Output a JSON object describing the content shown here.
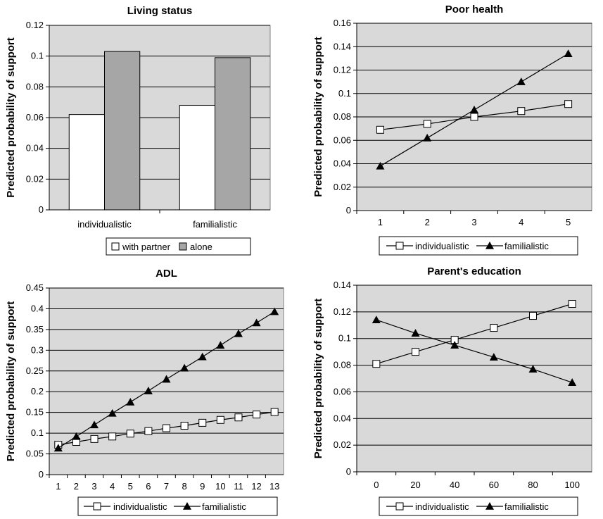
{
  "chart_data": [
    {
      "type": "bar",
      "title": "Living status",
      "xlabel": "",
      "ylabel": "Predicted probability of support",
      "ylim": [
        0,
        0.12
      ],
      "yticks": [
        "0",
        "0.02",
        "0.04",
        "0.06",
        "0.08",
        "0.1",
        "0.12"
      ],
      "categories": [
        "individualistic",
        "familialistic"
      ],
      "series": [
        {
          "name": "with partner",
          "values": [
            0.062,
            0.068
          ],
          "color": "#ffffff"
        },
        {
          "name": "alone",
          "values": [
            0.103,
            0.099
          ],
          "color": "#a6a6a6"
        }
      ],
      "grid": true,
      "legend": "bottom"
    },
    {
      "type": "line",
      "title": "Poor health",
      "xlabel": "",
      "ylabel": "Predicted probability of support",
      "ylim": [
        0,
        0.16
      ],
      "yticks": [
        "0",
        "0.02",
        "0.04",
        "0.06",
        "0.08",
        "0.1",
        "0.12",
        "0.14",
        "0.16"
      ],
      "x": [
        "1",
        "2",
        "3",
        "4",
        "5"
      ],
      "series": [
        {
          "name": "individualistic",
          "marker": "square",
          "values": [
            0.069,
            0.074,
            0.08,
            0.085,
            0.091
          ]
        },
        {
          "name": "familialistic",
          "marker": "triangle",
          "values": [
            0.038,
            0.062,
            0.086,
            0.11,
            0.134
          ]
        }
      ],
      "grid": true,
      "legend": "bottom"
    },
    {
      "type": "line",
      "title": "ADL",
      "xlabel": "",
      "ylabel": "Predicted probability of support",
      "ylim": [
        0,
        0.45
      ],
      "yticks": [
        "0",
        "0.05",
        "0.1",
        "0.15",
        "0.2",
        "0.25",
        "0.3",
        "0.35",
        "0.4",
        "0.45"
      ],
      "x": [
        "1",
        "2",
        "3",
        "4",
        "5",
        "6",
        "7",
        "8",
        "9",
        "10",
        "11",
        "12",
        "13"
      ],
      "series": [
        {
          "name": "individualistic",
          "marker": "square",
          "values": [
            0.072,
            0.079,
            0.086,
            0.092,
            0.099,
            0.105,
            0.112,
            0.118,
            0.125,
            0.132,
            0.138,
            0.145,
            0.151
          ]
        },
        {
          "name": "familialistic",
          "marker": "triangle",
          "values": [
            0.064,
            0.092,
            0.12,
            0.148,
            0.175,
            0.202,
            0.23,
            0.257,
            0.284,
            0.312,
            0.34,
            0.366,
            0.393
          ]
        }
      ],
      "grid": true,
      "legend": "bottom"
    },
    {
      "type": "line",
      "title": "Parent's education",
      "xlabel": "",
      "ylabel": "Predicted probability of support",
      "ylim": [
        0,
        0.14
      ],
      "yticks": [
        "0",
        "0.02",
        "0.04",
        "0.06",
        "0.08",
        "0.1",
        "0.12",
        "0.14"
      ],
      "x": [
        "0",
        "20",
        "40",
        "60",
        "80",
        "100"
      ],
      "series": [
        {
          "name": "individualistic",
          "marker": "square",
          "values": [
            0.081,
            0.09,
            0.099,
            0.108,
            0.117,
            0.126
          ]
        },
        {
          "name": "familialistic",
          "marker": "triangle",
          "values": [
            0.114,
            0.104,
            0.095,
            0.086,
            0.077,
            0.067
          ]
        }
      ],
      "grid": true,
      "legend": "bottom"
    }
  ]
}
